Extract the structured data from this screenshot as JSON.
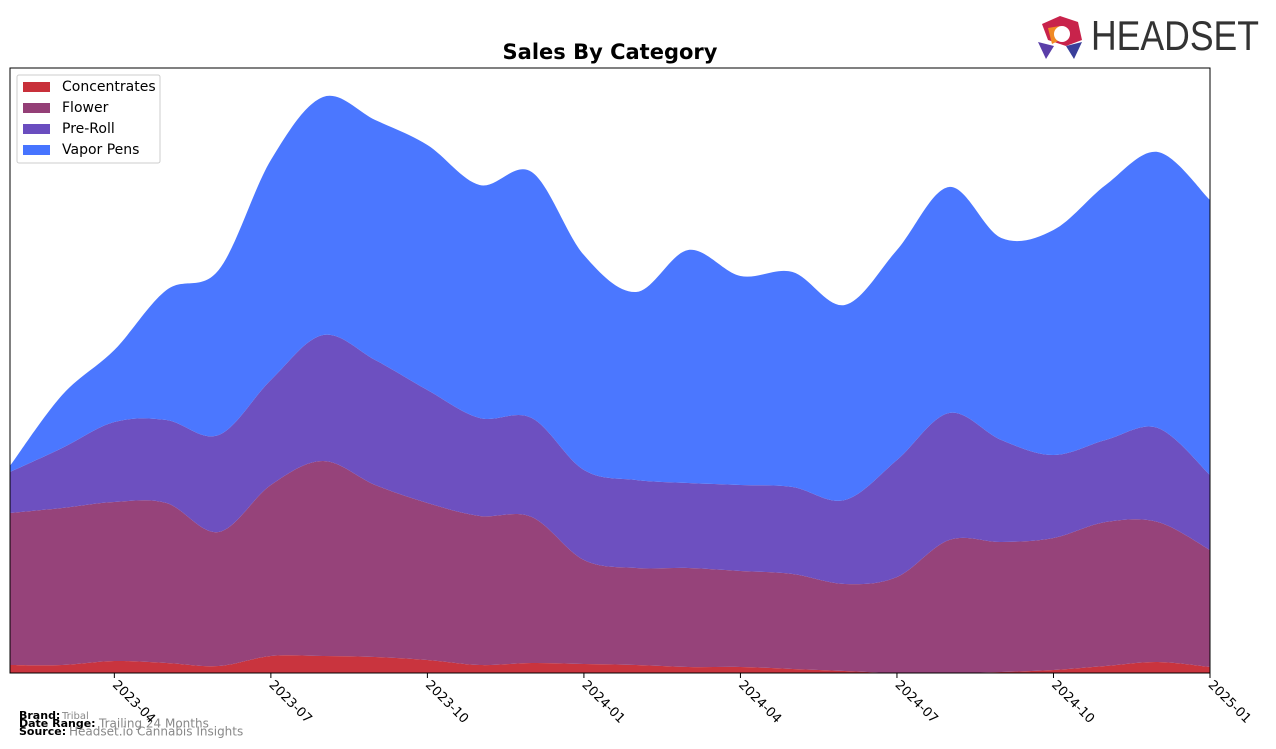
{
  "chart_data": {
    "type": "area",
    "stacked": true,
    "title": "Sales By Category",
    "x": [
      "2023-02",
      "2023-03",
      "2023-04",
      "2023-05",
      "2023-06",
      "2023-07",
      "2023-08",
      "2023-09",
      "2023-10",
      "2023-11",
      "2023-12",
      "2024-01",
      "2024-02",
      "2024-03",
      "2024-04",
      "2024-05",
      "2024-06",
      "2024-07",
      "2024-08",
      "2024-09",
      "2024-10",
      "2024-11",
      "2024-12",
      "2025-01"
    ],
    "xticks": [
      "2023-04",
      "2023-07",
      "2023-10",
      "2024-01",
      "2024-04",
      "2024-07",
      "2024-10",
      "2025-01"
    ],
    "ylim": [
      0,
      605
    ],
    "legend": "upper left",
    "series": [
      {
        "name": "Concentrates",
        "color": "#c8303a",
        "values": [
          8,
          8,
          12,
          10,
          7,
          17,
          17,
          16,
          13,
          8,
          10,
          9,
          8,
          6,
          6,
          4,
          2,
          0,
          0,
          1,
          3,
          7,
          11,
          6
        ]
      },
      {
        "name": "Flower",
        "color": "#943f77",
        "values": [
          152,
          157,
          159,
          160,
          134,
          171,
          195,
          172,
          157,
          149,
          146,
          104,
          97,
          99,
          96,
          95,
          87,
          96,
          133,
          130,
          132,
          144,
          140,
          117
        ]
      },
      {
        "name": "Pre-Roll",
        "color": "#6a4dbf",
        "values": [
          41,
          60,
          80,
          83,
          97,
          105,
          126,
          125,
          113,
          98,
          99,
          90,
          88,
          85,
          86,
          87,
          84,
          117,
          127,
          102,
          83,
          82,
          94,
          75
        ]
      },
      {
        "name": "Vapor Pens",
        "color": "#4774ff",
        "values": [
          6,
          53,
          72,
          130,
          165,
          220,
          238,
          240,
          245,
          233,
          246,
          215,
          188,
          233,
          209,
          215,
          195,
          210,
          226,
          202,
          225,
          255,
          276,
          275
        ]
      }
    ]
  },
  "footer": {
    "brand_label": "Brand:",
    "brand": "Tribal",
    "range_label": "Date Range:",
    "range": "Trailing 24 Months",
    "source_label": "Source:",
    "source": "Headset.io Cannabis Insights"
  },
  "logo": {
    "text": "HEADSET"
  }
}
